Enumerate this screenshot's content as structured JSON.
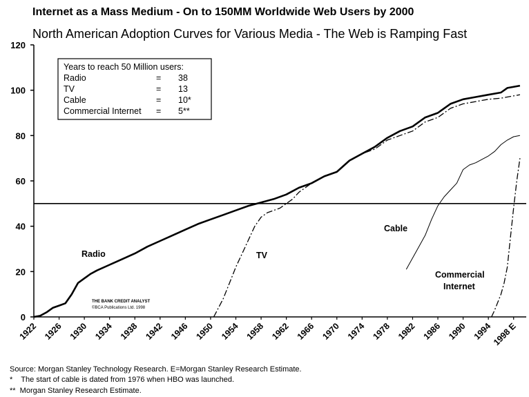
{
  "chart_data": {
    "type": "line",
    "title": "Internet as a Mass Medium - On to 150MM Worldwide Web Users by 2000",
    "subtitle": "North American Adoption Curves for Various Media - The Web is Ramping Fast",
    "xlim": [
      1922,
      2000
    ],
    "ylim": [
      0,
      120
    ],
    "yticks": [
      0,
      20,
      40,
      60,
      80,
      100,
      120
    ],
    "xticks": [
      1922,
      1926,
      1930,
      1934,
      1938,
      1942,
      1946,
      1950,
      1954,
      1958,
      1962,
      1966,
      1970,
      1974,
      1978,
      1982,
      1986,
      1990,
      1994,
      {
        "value": 1998,
        "label": "1998 E"
      }
    ],
    "hline": 50,
    "series": [
      {
        "name": "Radio",
        "color": "#000000",
        "dash": "solid",
        "width": 2.6,
        "x": [
          1922,
          1923,
          1924,
          1925,
          1926,
          1927,
          1928,
          1929,
          1930,
          1931,
          1932,
          1934,
          1936,
          1938,
          1940,
          1942,
          1944,
          1946,
          1948,
          1950,
          1952,
          1954,
          1956,
          1958,
          1960,
          1962,
          1964,
          1966,
          1968,
          1970,
          1972,
          1974,
          1976,
          1978,
          1980,
          1982,
          1984,
          1986,
          1988,
          1990,
          1992,
          1994,
          1996,
          1997,
          1999
        ],
        "values": [
          0,
          0.5,
          2,
          4,
          5,
          6,
          10,
          15,
          17,
          19,
          20.5,
          23,
          25.5,
          28,
          31,
          33.5,
          36,
          38.5,
          41,
          43,
          45,
          47,
          49,
          50.5,
          52,
          54,
          57,
          59,
          62,
          64,
          69,
          72,
          75,
          79,
          82,
          84,
          88,
          90,
          94,
          96,
          97,
          98,
          99,
          101,
          102
        ]
      },
      {
        "name": "TV",
        "color": "#000000",
        "dash": "dashdot",
        "width": 1.3,
        "x": [
          1950.5,
          1952,
          1953,
          1954,
          1955,
          1956,
          1957,
          1958,
          1959,
          1960,
          1961,
          1962,
          1963,
          1964,
          1966,
          1968,
          1970,
          1972,
          1974,
          1976,
          1978,
          1980,
          1982,
          1984,
          1986,
          1988,
          1990,
          1992,
          1994,
          1996,
          1999
        ],
        "values": [
          0,
          8,
          15,
          22,
          28,
          34,
          40,
          44,
          46,
          47,
          48,
          50,
          52,
          55,
          59,
          62,
          64,
          69,
          72,
          74,
          78,
          80,
          82,
          86,
          88,
          92,
          94,
          95,
          96,
          96.5,
          98
        ]
      },
      {
        "name": "Cable",
        "color": "#000000",
        "dash": "solid",
        "width": 1,
        "x": [
          1981,
          1982,
          1983,
          1984,
          1985,
          1986,
          1987,
          1988,
          1989,
          1990,
          1991,
          1992,
          1993,
          1994,
          1995,
          1996,
          1997,
          1998,
          1999
        ],
        "values": [
          21,
          26,
          31,
          36,
          43,
          49,
          53,
          56,
          59,
          65,
          67,
          68,
          69.5,
          71,
          73,
          76,
          78,
          79.5,
          80
        ]
      },
      {
        "name": "Commercial Internet",
        "color": "#000000",
        "dash": "dashdot",
        "width": 1.3,
        "x": [
          1994.5,
          1995,
          1996,
          1996.5,
          1997,
          1997.5,
          1998,
          1998.5,
          1999
        ],
        "values": [
          0,
          3,
          10,
          15,
          22,
          35,
          48,
          60,
          70
        ]
      }
    ],
    "inset": {
      "title": "Years to reach 50 Million users:",
      "rows": [
        [
          "Radio",
          "=",
          "38"
        ],
        [
          "TV",
          "=",
          "13"
        ],
        [
          "Cable",
          "=",
          "10*"
        ],
        [
          "Commercial Internet",
          "=",
          "5**"
        ]
      ]
    },
    "credit": [
      "THE BANK CREDIT ANALYST",
      "©BCA Publications Ltd. 1998"
    ],
    "notes": [
      "Source: Morgan Stanley Technology Research. E=Morgan Stanley Research Estimate.",
      "*    The start of cable is dated from 1976 when HBO was launched.",
      "**  Morgan Stanley Research Estimate."
    ]
  }
}
